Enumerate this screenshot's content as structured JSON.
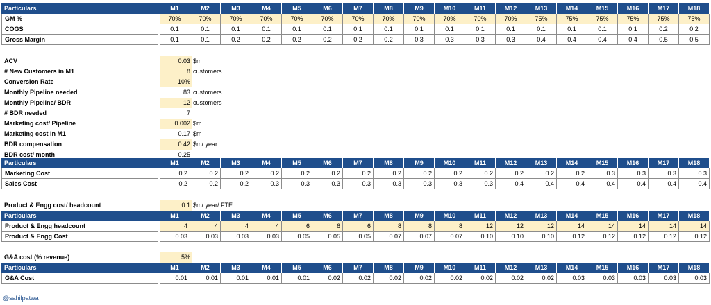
{
  "months": [
    "M1",
    "M2",
    "M3",
    "M4",
    "M5",
    "M6",
    "M7",
    "M8",
    "M9",
    "M10",
    "M11",
    "M12",
    "M13",
    "M14",
    "M15",
    "M16",
    "M17",
    "M18"
  ],
  "header_label": "Particulars",
  "gm_table": {
    "rows": [
      {
        "label": "GM %",
        "values": [
          "70%",
          "70%",
          "70%",
          "70%",
          "70%",
          "70%",
          "70%",
          "70%",
          "70%",
          "70%",
          "70%",
          "70%",
          "75%",
          "75%",
          "75%",
          "75%",
          "75%",
          "75%"
        ],
        "highlight": true,
        "align": "center"
      },
      {
        "label": "COGS",
        "values": [
          "0.1",
          "0.1",
          "0.1",
          "0.1",
          "0.1",
          "0.1",
          "0.1",
          "0.1",
          "0.1",
          "0.1",
          "0.1",
          "0.1",
          "0.1",
          "0.1",
          "0.1",
          "0.1",
          "0.2",
          "0.2"
        ],
        "highlight": false,
        "align": "center"
      },
      {
        "label": "Gross Margin",
        "values": [
          "0.1",
          "0.1",
          "0.2",
          "0.2",
          "0.2",
          "0.2",
          "0.2",
          "0.2",
          "0.3",
          "0.3",
          "0.3",
          "0.3",
          "0.4",
          "0.4",
          "0.4",
          "0.4",
          "0.5",
          "0.5"
        ],
        "highlight": false,
        "align": "center"
      }
    ]
  },
  "assumptions": [
    {
      "label": "ACV",
      "value": "0.03",
      "unit": "$m",
      "highlight": true
    },
    {
      "label": "# New Customers in M1",
      "value": "8",
      "unit": "customers",
      "highlight": true
    },
    {
      "label": "Conversion Rate",
      "value": "10%",
      "unit": "",
      "highlight": true
    },
    {
      "label": "Monthly Pipeline needed",
      "value": "83",
      "unit": "customers",
      "highlight": false
    },
    {
      "label": "Monthly Pipeline/ BDR",
      "value": "12",
      "unit": "customers",
      "highlight": true
    },
    {
      "label": "# BDR needed",
      "value": "7",
      "unit": "",
      "highlight": false
    },
    {
      "label": "Marketing cost/ Pipeline",
      "value": "0.002",
      "unit": "$m",
      "highlight": true
    },
    {
      "label": "Marketing cost in M1",
      "value": "0.17",
      "unit": "$m",
      "highlight": false
    },
    {
      "label": "BDR compensation",
      "value": "0.42",
      "unit": "$m/ year",
      "highlight": true
    },
    {
      "label": "BDR cost/ month",
      "value": "0.25",
      "unit": "",
      "highlight": false
    }
  ],
  "sm_table": {
    "rows": [
      {
        "label": "Marketing Cost",
        "values": [
          "0.2",
          "0.2",
          "0.2",
          "0.2",
          "0.2",
          "0.2",
          "0.2",
          "0.2",
          "0.2",
          "0.2",
          "0.2",
          "0.2",
          "0.2",
          "0.2",
          "0.3",
          "0.3",
          "0.3",
          "0.3"
        ],
        "highlight": false,
        "align": "right"
      },
      {
        "label": "Sales Cost",
        "values": [
          "0.2",
          "0.2",
          "0.2",
          "0.3",
          "0.3",
          "0.3",
          "0.3",
          "0.3",
          "0.3",
          "0.3",
          "0.3",
          "0.4",
          "0.4",
          "0.4",
          "0.4",
          "0.4",
          "0.4",
          "0.4"
        ],
        "highlight": false,
        "align": "right"
      }
    ]
  },
  "pe_assumption": {
    "label": "Product & Engg cost/ headcount",
    "value": "0.1",
    "unit": "$m/ year/ FTE"
  },
  "pe_table": {
    "rows": [
      {
        "label": "Product & Engg headcount",
        "values": [
          "4",
          "4",
          "4",
          "4",
          "6",
          "6",
          "6",
          "8",
          "8",
          "8",
          "12",
          "12",
          "12",
          "14",
          "14",
          "14",
          "14",
          "14"
        ],
        "highlight": true,
        "align": "right"
      },
      {
        "label": "Product & Engg Cost",
        "values": [
          "0.03",
          "0.03",
          "0.03",
          "0.03",
          "0.05",
          "0.05",
          "0.05",
          "0.07",
          "0.07",
          "0.07",
          "0.10",
          "0.10",
          "0.10",
          "0.12",
          "0.12",
          "0.12",
          "0.12",
          "0.12"
        ],
        "highlight": false,
        "align": "right"
      }
    ]
  },
  "ga_assumption": {
    "label": "G&A cost (% revenue)",
    "value": "5%",
    "unit": ""
  },
  "ga_table": {
    "rows": [
      {
        "label": "G&A Cost",
        "values": [
          "0.01",
          "0.01",
          "0.01",
          "0.01",
          "0.01",
          "0.02",
          "0.02",
          "0.02",
          "0.02",
          "0.02",
          "0.02",
          "0.02",
          "0.02",
          "0.03",
          "0.03",
          "0.03",
          "0.03",
          "0.03"
        ],
        "highlight": false,
        "align": "right"
      }
    ]
  },
  "credit": "@sahilpatwa"
}
